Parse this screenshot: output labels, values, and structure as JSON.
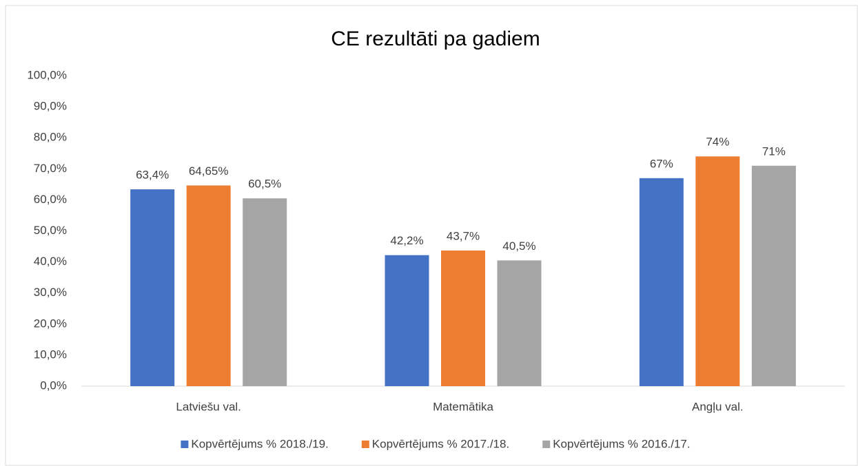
{
  "chart_data": {
    "type": "bar",
    "title": "CE rezultāti pa gadiem",
    "categories": [
      "Latviešu val.",
      "Matemātika",
      "Angļu val."
    ],
    "series": [
      {
        "name": "Kopvērtējums % 2018./19.",
        "color": "#4472c4",
        "values": [
          63.4,
          42.2,
          67
        ],
        "value_labels": [
          "63,4%",
          "42,2%",
          "67%"
        ]
      },
      {
        "name": "Kopvērtējums % 2017./18.",
        "color": "#ed7d31",
        "values": [
          64.65,
          43.7,
          74
        ],
        "value_labels": [
          "64,65%",
          "43,7%",
          "74%"
        ]
      },
      {
        "name": "Kopvērtējums % 2016./17.",
        "color": "#a5a5a5",
        "values": [
          60.5,
          40.5,
          71
        ],
        "value_labels": [
          "60,5%",
          "40,5%",
          "71%"
        ]
      }
    ],
    "ylim": [
      0,
      100
    ],
    "yticks": [
      {
        "value": 0,
        "label": "0,0%"
      },
      {
        "value": 10,
        "label": "10,0%"
      },
      {
        "value": 20,
        "label": "20,0%"
      },
      {
        "value": 30,
        "label": "30,0%"
      },
      {
        "value": 40,
        "label": "40,0%"
      },
      {
        "value": 50,
        "label": "50,0%"
      },
      {
        "value": 60,
        "label": "60,0%"
      },
      {
        "value": 70,
        "label": "70,0%"
      },
      {
        "value": 80,
        "label": "80,0%"
      },
      {
        "value": 90,
        "label": "90,0%"
      },
      {
        "value": 100,
        "label": "100,0%"
      }
    ],
    "grid": false,
    "legend": "bottom"
  }
}
